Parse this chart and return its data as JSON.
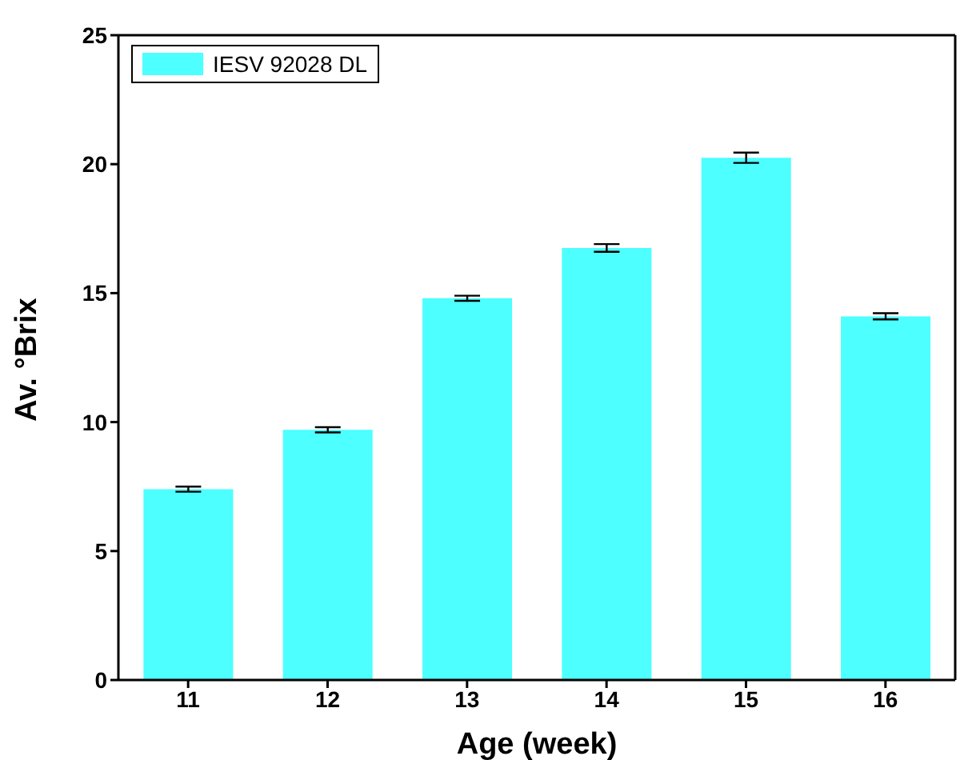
{
  "chart_data": {
    "type": "bar",
    "xlabel": "Age (week)",
    "ylabel": "Av. °Brix",
    "categories": [
      "11",
      "12",
      "13",
      "14",
      "15",
      "16"
    ],
    "series": [
      {
        "name": "IESV 92028 DL",
        "color": "#4dffff",
        "values": [
          7.4,
          9.7,
          14.8,
          16.75,
          20.25,
          14.1
        ],
        "errors": [
          0.1,
          0.1,
          0.1,
          0.15,
          0.2,
          0.12
        ]
      }
    ],
    "ylim": [
      0,
      25
    ],
    "yticks": [
      0,
      5,
      10,
      15,
      20,
      25
    ],
    "legend": "top left"
  }
}
